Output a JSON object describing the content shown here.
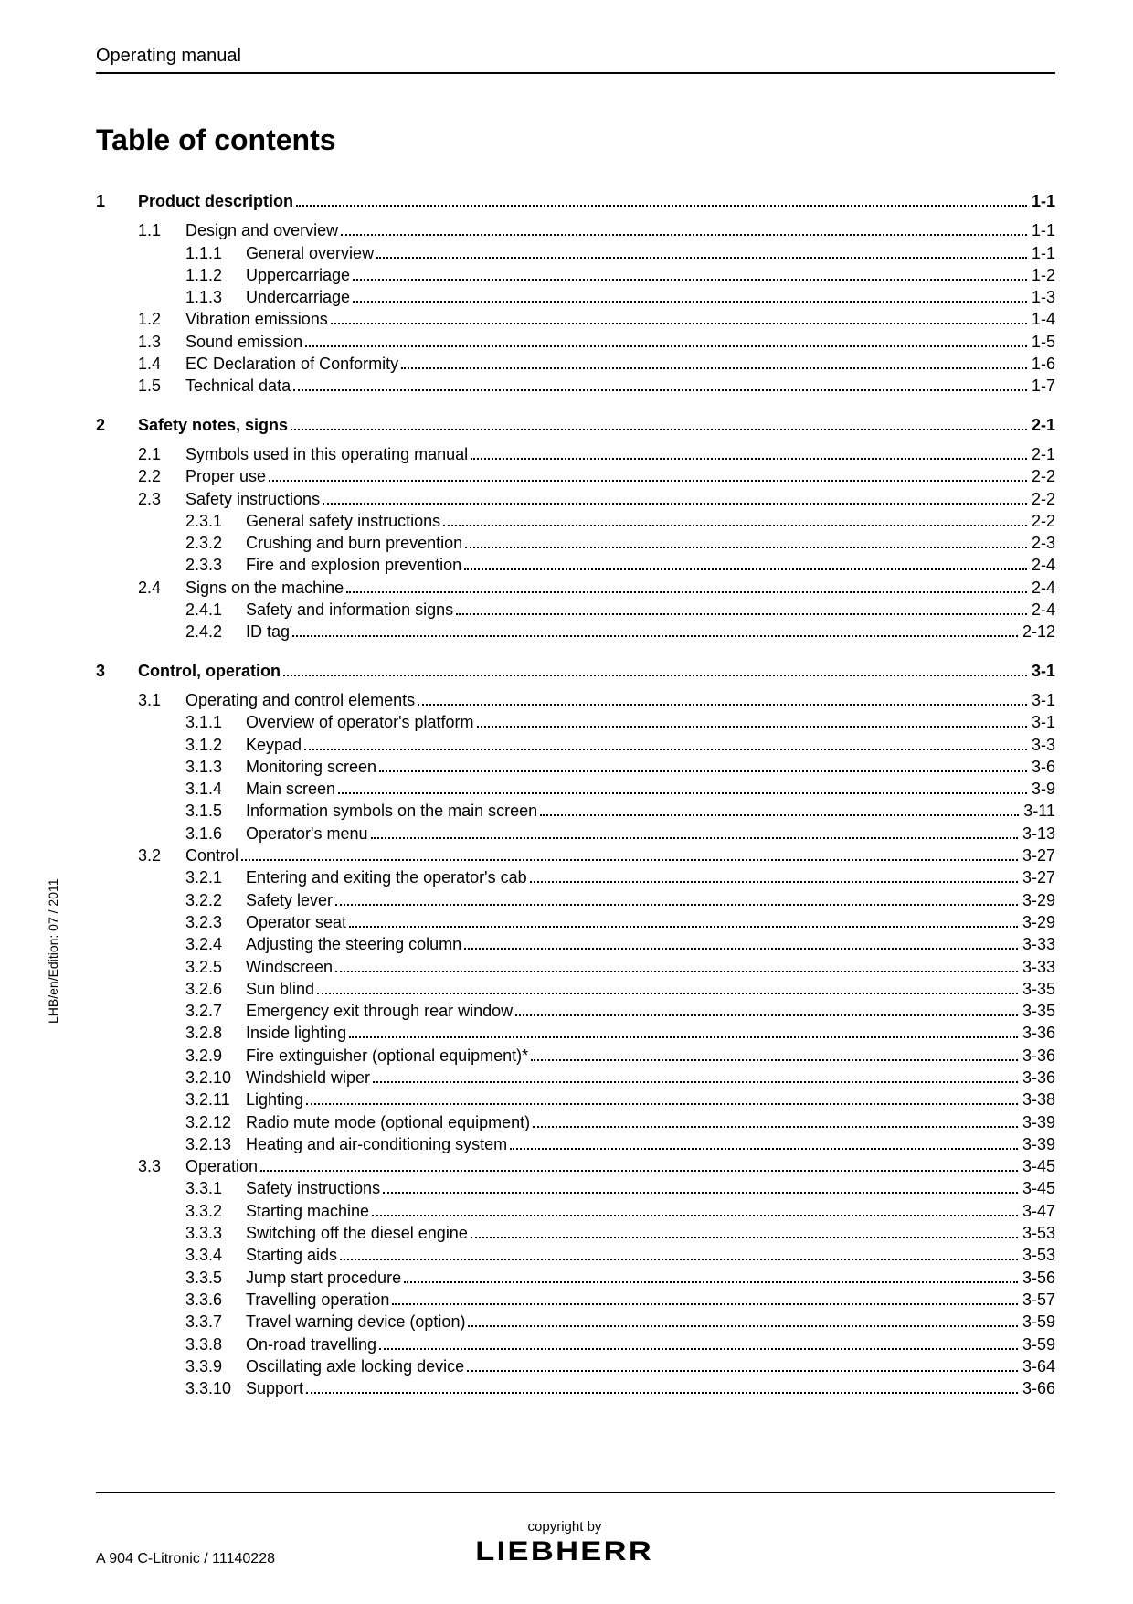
{
  "header": "Operating manual",
  "title": "Table of contents",
  "side_text": "LHB/en/Edition: 07 / 2011",
  "footer_left": "A 904 C-Litronic / 11140228",
  "copyright": "copyright by",
  "brand": "LIEBHERR",
  "toc": [
    {
      "level": 0,
      "num": "1",
      "label": "Product description",
      "page": "1-1"
    },
    {
      "level": 1,
      "num": "1.1",
      "label": "Design and overview",
      "page": "1-1"
    },
    {
      "level": 2,
      "num": "1.1.1",
      "label": "General overview",
      "page": "1-1"
    },
    {
      "level": 2,
      "num": "1.1.2",
      "label": "Uppercarriage",
      "page": "1-2"
    },
    {
      "level": 2,
      "num": "1.1.3",
      "label": "Undercarriage",
      "page": "1-3"
    },
    {
      "level": 1,
      "num": "1.2",
      "label": "Vibration emissions",
      "page": "1-4"
    },
    {
      "level": 1,
      "num": "1.3",
      "label": "Sound emission",
      "page": "1-5"
    },
    {
      "level": 1,
      "num": "1.4",
      "label": "EC Declaration of Conformity",
      "page": "1-6"
    },
    {
      "level": 1,
      "num": "1.5",
      "label": "Technical data",
      "page": "1-7"
    },
    {
      "level": 0,
      "num": "2",
      "label": "Safety notes, signs",
      "page": "2-1"
    },
    {
      "level": 1,
      "num": "2.1",
      "label": "Symbols used in this operating manual",
      "page": "2-1"
    },
    {
      "level": 1,
      "num": "2.2",
      "label": "Proper use",
      "page": "2-2"
    },
    {
      "level": 1,
      "num": "2.3",
      "label": "Safety instructions",
      "page": "2-2"
    },
    {
      "level": 2,
      "num": "2.3.1",
      "label": "General safety instructions",
      "page": "2-2"
    },
    {
      "level": 2,
      "num": "2.3.2",
      "label": "Crushing and burn prevention",
      "page": "2-3"
    },
    {
      "level": 2,
      "num": "2.3.3",
      "label": "Fire and explosion prevention",
      "page": "2-4"
    },
    {
      "level": 1,
      "num": "2.4",
      "label": "Signs on the machine",
      "page": "2-4"
    },
    {
      "level": 2,
      "num": "2.4.1",
      "label": "Safety and information signs",
      "page": "2-4"
    },
    {
      "level": 2,
      "num": "2.4.2",
      "label": "ID tag",
      "page": "2-12"
    },
    {
      "level": 0,
      "num": "3",
      "label": "Control, operation",
      "page": "3-1"
    },
    {
      "level": 1,
      "num": "3.1",
      "label": "Operating and control elements",
      "page": "3-1"
    },
    {
      "level": 2,
      "num": "3.1.1",
      "label": "Overview of operator's platform",
      "page": "3-1"
    },
    {
      "level": 2,
      "num": "3.1.2",
      "label": "Keypad",
      "page": "3-3"
    },
    {
      "level": 2,
      "num": "3.1.3",
      "label": "Monitoring screen",
      "page": "3-6"
    },
    {
      "level": 2,
      "num": "3.1.4",
      "label": "Main screen",
      "page": "3-9"
    },
    {
      "level": 2,
      "num": "3.1.5",
      "label": "Information symbols on the main screen",
      "page": "3-11"
    },
    {
      "level": 2,
      "num": "3.1.6",
      "label": "Operator's menu",
      "page": "3-13"
    },
    {
      "level": 1,
      "num": "3.2",
      "label": "Control",
      "page": "3-27"
    },
    {
      "level": 2,
      "num": "3.2.1",
      "label": "Entering and exiting the operator's cab",
      "page": "3-27"
    },
    {
      "level": 2,
      "num": "3.2.2",
      "label": "Safety lever",
      "page": "3-29"
    },
    {
      "level": 2,
      "num": "3.2.3",
      "label": "Operator seat",
      "page": "3-29"
    },
    {
      "level": 2,
      "num": "3.2.4",
      "label": "Adjusting the steering column",
      "page": "3-33"
    },
    {
      "level": 2,
      "num": "3.2.5",
      "label": "Windscreen",
      "page": "3-33"
    },
    {
      "level": 2,
      "num": "3.2.6",
      "label": "Sun blind",
      "page": "3-35"
    },
    {
      "level": 2,
      "num": "3.2.7",
      "label": "Emergency exit through rear window",
      "page": "3-35"
    },
    {
      "level": 2,
      "num": "3.2.8",
      "label": "Inside lighting",
      "page": "3-36"
    },
    {
      "level": 2,
      "num": "3.2.9",
      "label": "Fire extinguisher (optional equipment)*",
      "page": "3-36"
    },
    {
      "level": 2,
      "num": "3.2.10",
      "label": "Windshield wiper",
      "page": "3-36"
    },
    {
      "level": 2,
      "num": "3.2.11",
      "label": "Lighting",
      "page": "3-38"
    },
    {
      "level": 2,
      "num": "3.2.12",
      "label": "Radio mute mode (optional equipment)",
      "page": "3-39"
    },
    {
      "level": 2,
      "num": "3.2.13",
      "label": "Heating and air-conditioning system",
      "page": "3-39"
    },
    {
      "level": 1,
      "num": "3.3",
      "label": "Operation",
      "page": "3-45"
    },
    {
      "level": 2,
      "num": "3.3.1",
      "label": "Safety instructions",
      "page": "3-45"
    },
    {
      "level": 2,
      "num": "3.3.2",
      "label": "Starting machine",
      "page": "3-47"
    },
    {
      "level": 2,
      "num": "3.3.3",
      "label": "Switching off the diesel engine",
      "page": "3-53"
    },
    {
      "level": 2,
      "num": "3.3.4",
      "label": "Starting aids",
      "page": "3-53"
    },
    {
      "level": 2,
      "num": "3.3.5",
      "label": "Jump start procedure",
      "page": "3-56"
    },
    {
      "level": 2,
      "num": "3.3.6",
      "label": "Travelling operation",
      "page": "3-57"
    },
    {
      "level": 2,
      "num": "3.3.7",
      "label": "Travel warning device (option)",
      "page": "3-59"
    },
    {
      "level": 2,
      "num": "3.3.8",
      "label": "On-road travelling",
      "page": "3-59"
    },
    {
      "level": 2,
      "num": "3.3.9",
      "label": "Oscillating axle locking device",
      "page": "3-64"
    },
    {
      "level": 2,
      "num": "3.3.10",
      "label": "Support",
      "page": "3-66"
    }
  ]
}
